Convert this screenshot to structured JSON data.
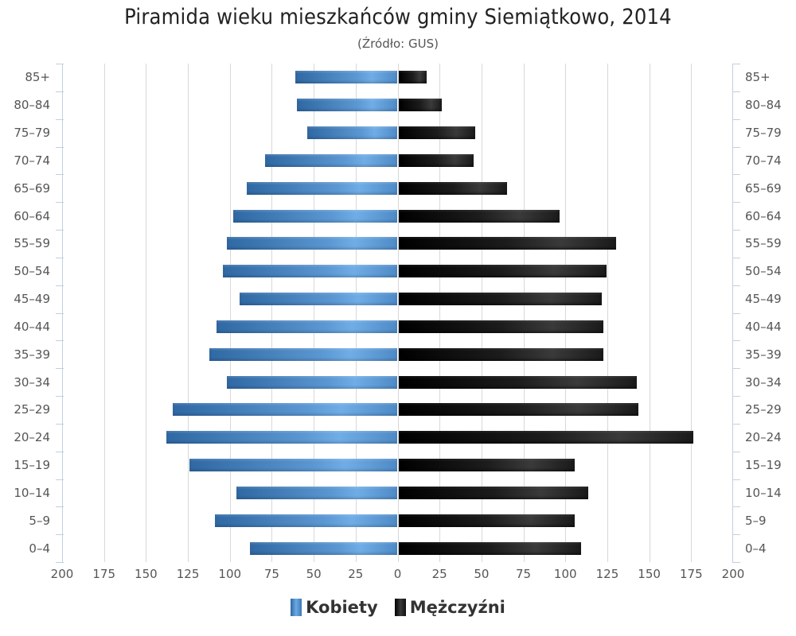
{
  "header": {
    "title": "Piramida wieku mieszkańców gminy Siemiątkowo, 2014",
    "subtitle": "(Źródło: GUS)"
  },
  "legend": [
    {
      "label": "Kobiety",
      "color": "#4a86c5"
    },
    {
      "label": "Mężczyźni",
      "color": "#1a1a1a"
    }
  ],
  "chart_data": {
    "type": "bar",
    "orientation": "horizontal",
    "subtype": "population-pyramid",
    "title": "Piramida wieku mieszkańców gminy Siemiątkowo, 2014",
    "subtitle": "(Źródło: GUS)",
    "categories": [
      "85+",
      "80-84",
      "75-79",
      "70-74",
      "65-69",
      "60-64",
      "55-59",
      "50-54",
      "45-49",
      "40-44",
      "35-39",
      "30-34",
      "25-29",
      "20-24",
      "15-19",
      "10-14",
      "5-9",
      "0-4"
    ],
    "series": [
      {
        "name": "Kobiety",
        "side": "left",
        "color": "#4a86c5",
        "values": [
          61,
          60,
          54,
          79,
          90,
          98,
          102,
          104,
          94,
          108,
          112,
          102,
          134,
          138,
          124,
          96,
          109,
          88
        ]
      },
      {
        "name": "Mężczyźni",
        "side": "right",
        "color": "#1a1a1a",
        "values": [
          17,
          26,
          46,
          45,
          65,
          96,
          130,
          124,
          121,
          122,
          122,
          142,
          143,
          176,
          105,
          113,
          105,
          109
        ]
      }
    ],
    "x_ticks": [
      "200",
      "175",
      "150",
      "125",
      "100",
      "75",
      "50",
      "25",
      "0",
      "25",
      "50",
      "75",
      "100",
      "125",
      "150",
      "175",
      "200"
    ],
    "xlim": [
      -200,
      200
    ],
    "xlabel": "",
    "ylabel": "",
    "grid": true,
    "legend_position": "bottom"
  }
}
